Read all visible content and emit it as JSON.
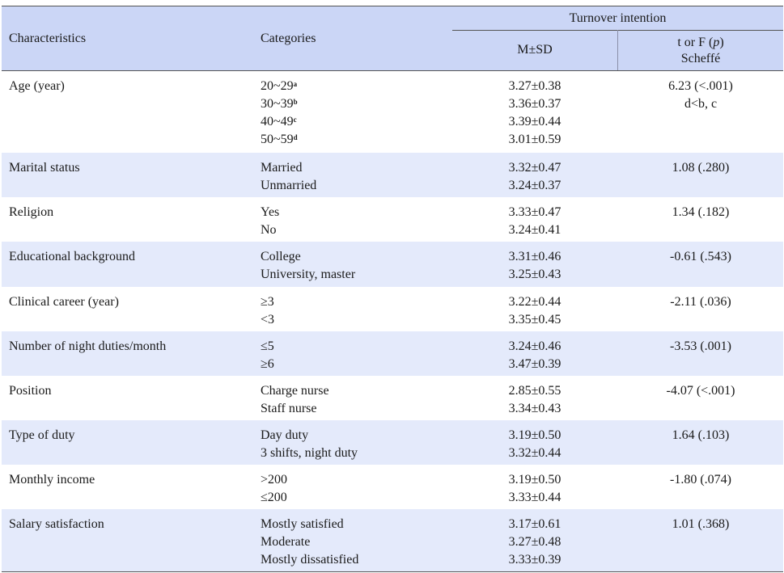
{
  "header": {
    "characteristics": "Characteristics",
    "categories": "Categories",
    "turnover": "Turnover intention",
    "msd": "M±SD",
    "stat_t": "t or F (",
    "stat_p": "p",
    "stat_close": ")",
    "scheffe": "Scheffé"
  },
  "rows": [
    {
      "characteristic": "Age (year)",
      "categories": [
        "20~29",
        "30~39",
        "40~49",
        "50~59"
      ],
      "sups": [
        "a",
        "b",
        "c",
        "d"
      ],
      "values": [
        "3.27±0.38",
        "3.36±0.37",
        "3.39±0.44",
        "3.01±0.59"
      ],
      "stat": "6.23 (<.001)",
      "scheffe": "d<b, c"
    },
    {
      "characteristic": "Marital status",
      "categories": [
        "Married",
        "Unmarried"
      ],
      "values": [
        "3.32±0.47",
        "3.24±0.37"
      ],
      "stat": "1.08 (.280)"
    },
    {
      "characteristic": "Religion",
      "categories": [
        "Yes",
        "No"
      ],
      "values": [
        "3.33±0.47",
        "3.24±0.41"
      ],
      "stat": "1.34 (.182)"
    },
    {
      "characteristic": "Educational background",
      "categories": [
        "College",
        "University, master"
      ],
      "values": [
        "3.31±0.46",
        "3.25±0.43"
      ],
      "stat": "-0.61 (.543)"
    },
    {
      "characteristic": "Clinical career (year)",
      "categories": [
        "≥3",
        "<3"
      ],
      "values": [
        "3.22±0.44",
        "3.35±0.45"
      ],
      "stat": "-2.11 (.036)"
    },
    {
      "characteristic": "Number of night duties/month",
      "categories": [
        "≤5",
        "≥6"
      ],
      "values": [
        "3.24±0.46",
        "3.47±0.39"
      ],
      "stat": "-3.53 (.001)"
    },
    {
      "characteristic": "Position",
      "categories": [
        "Charge nurse",
        "Staff nurse"
      ],
      "values": [
        "2.85±0.55",
        "3.34±0.43"
      ],
      "stat": "-4.07 (<.001)"
    },
    {
      "characteristic": "Type of duty",
      "categories": [
        "Day duty",
        "3 shifts, night duty"
      ],
      "values": [
        "3.19±0.50",
        "3.32±0.44"
      ],
      "stat": "1.64 (.103)"
    },
    {
      "characteristic": "Monthly income",
      "categories": [
        ">200",
        "≤200"
      ],
      "values": [
        "3.19±0.50",
        "3.33±0.44"
      ],
      "stat": "-1.80 (.074)"
    },
    {
      "characteristic": "Salary satisfaction",
      "categories": [
        "Mostly satisfied",
        "Moderate",
        "Mostly dissatisfied"
      ],
      "values": [
        "3.17±0.61",
        "3.27±0.48",
        "3.33±0.39"
      ],
      "stat": "1.01 (.368)"
    }
  ]
}
